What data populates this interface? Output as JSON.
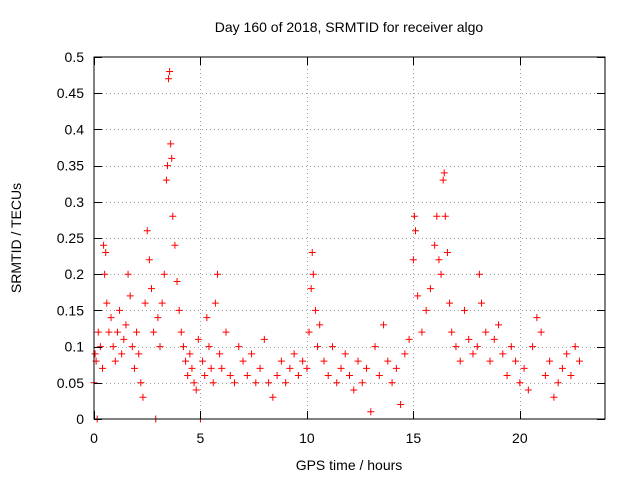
{
  "chart_data": {
    "type": "scatter",
    "title": "Day 160 of 2018, SRMTID for receiver algo",
    "xlabel": "GPS time / hours",
    "ylabel": "SRMTID / TECUs",
    "xlim": [
      0,
      24
    ],
    "ylim": [
      0,
      0.5
    ],
    "x_ticks": [
      0,
      5,
      10,
      15,
      20
    ],
    "x_tick_labels": [
      "0",
      "5",
      "10",
      "15",
      "20"
    ],
    "y_ticks": [
      0,
      0.05,
      0.1,
      0.15,
      0.2,
      0.25,
      0.3,
      0.35,
      0.4,
      0.45,
      0.5
    ],
    "y_tick_labels": [
      "0",
      "0.05",
      "0.1",
      "0.15",
      "0.2",
      "0.25",
      "0.3",
      "0.35",
      "0.4",
      "0.45",
      "0.5"
    ],
    "grid": true,
    "marker": "+",
    "marker_color": "#ff0000",
    "series": [
      {
        "name": "SRMTID",
        "points": [
          [
            0.0,
            0.05
          ],
          [
            0.05,
            0.09
          ],
          [
            0.1,
            0.08
          ],
          [
            0.15,
            0.0
          ],
          [
            0.2,
            0.12
          ],
          [
            0.3,
            0.1
          ],
          [
            0.4,
            0.07
          ],
          [
            0.45,
            0.24
          ],
          [
            0.5,
            0.2
          ],
          [
            0.55,
            0.23
          ],
          [
            0.6,
            0.16
          ],
          [
            0.7,
            0.12
          ],
          [
            0.8,
            0.14
          ],
          [
            0.9,
            0.1
          ],
          [
            1.0,
            0.08
          ],
          [
            1.1,
            0.12
          ],
          [
            1.2,
            0.15
          ],
          [
            1.3,
            0.09
          ],
          [
            1.4,
            0.11
          ],
          [
            1.5,
            0.13
          ],
          [
            1.6,
            0.2
          ],
          [
            1.7,
            0.17
          ],
          [
            1.8,
            0.1
          ],
          [
            1.9,
            0.07
          ],
          [
            2.0,
            0.12
          ],
          [
            2.1,
            0.09
          ],
          [
            2.2,
            0.05
          ],
          [
            2.3,
            0.03
          ],
          [
            2.4,
            0.16
          ],
          [
            2.5,
            0.26
          ],
          [
            2.6,
            0.22
          ],
          [
            2.7,
            0.18
          ],
          [
            2.8,
            0.12
          ],
          [
            2.9,
            0.0
          ],
          [
            3.0,
            0.14
          ],
          [
            3.1,
            0.1
          ],
          [
            3.2,
            0.16
          ],
          [
            3.3,
            0.2
          ],
          [
            3.4,
            0.33
          ],
          [
            3.45,
            0.35
          ],
          [
            3.5,
            0.47
          ],
          [
            3.55,
            0.48
          ],
          [
            3.6,
            0.38
          ],
          [
            3.65,
            0.36
          ],
          [
            3.7,
            0.28
          ],
          [
            3.8,
            0.24
          ],
          [
            3.9,
            0.19
          ],
          [
            4.0,
            0.15
          ],
          [
            4.1,
            0.12
          ],
          [
            4.2,
            0.1
          ],
          [
            4.3,
            0.08
          ],
          [
            4.4,
            0.06
          ],
          [
            4.5,
            0.09
          ],
          [
            4.6,
            0.07
          ],
          [
            4.7,
            0.05
          ],
          [
            4.8,
            0.04
          ],
          [
            4.9,
            0.11
          ],
          [
            5.0,
            0.0
          ],
          [
            5.1,
            0.08
          ],
          [
            5.2,
            0.06
          ],
          [
            5.3,
            0.14
          ],
          [
            5.4,
            0.1
          ],
          [
            5.5,
            0.07
          ],
          [
            5.6,
            0.05
          ],
          [
            5.7,
            0.16
          ],
          [
            5.8,
            0.2
          ],
          [
            5.9,
            0.09
          ],
          [
            6.0,
            0.07
          ],
          [
            6.2,
            0.12
          ],
          [
            6.4,
            0.06
          ],
          [
            6.6,
            0.05
          ],
          [
            6.8,
            0.1
          ],
          [
            7.0,
            0.08
          ],
          [
            7.2,
            0.06
          ],
          [
            7.4,
            0.09
          ],
          [
            7.6,
            0.05
          ],
          [
            7.8,
            0.07
          ],
          [
            8.0,
            0.11
          ],
          [
            8.2,
            0.05
          ],
          [
            8.4,
            0.03
          ],
          [
            8.6,
            0.06
          ],
          [
            8.8,
            0.08
          ],
          [
            9.0,
            0.05
          ],
          [
            9.2,
            0.07
          ],
          [
            9.4,
            0.09
          ],
          [
            9.6,
            0.06
          ],
          [
            9.8,
            0.08
          ],
          [
            10.0,
            0.07
          ],
          [
            10.1,
            0.12
          ],
          [
            10.2,
            0.18
          ],
          [
            10.25,
            0.23
          ],
          [
            10.3,
            0.2
          ],
          [
            10.4,
            0.15
          ],
          [
            10.5,
            0.1
          ],
          [
            10.6,
            0.13
          ],
          [
            10.8,
            0.08
          ],
          [
            11.0,
            0.06
          ],
          [
            11.2,
            0.1
          ],
          [
            11.4,
            0.05
          ],
          [
            11.6,
            0.07
          ],
          [
            11.8,
            0.09
          ],
          [
            12.0,
            0.06
          ],
          [
            12.2,
            0.04
          ],
          [
            12.4,
            0.08
          ],
          [
            12.6,
            0.05
          ],
          [
            12.8,
            0.07
          ],
          [
            13.0,
            0.01
          ],
          [
            13.2,
            0.1
          ],
          [
            13.4,
            0.06
          ],
          [
            13.6,
            0.13
          ],
          [
            13.8,
            0.08
          ],
          [
            14.0,
            0.05
          ],
          [
            14.2,
            0.07
          ],
          [
            14.4,
            0.02
          ],
          [
            14.6,
            0.09
          ],
          [
            14.8,
            0.11
          ],
          [
            15.0,
            0.22
          ],
          [
            15.05,
            0.28
          ],
          [
            15.1,
            0.26
          ],
          [
            15.2,
            0.17
          ],
          [
            15.4,
            0.12
          ],
          [
            15.6,
            0.15
          ],
          [
            15.8,
            0.18
          ],
          [
            16.0,
            0.24
          ],
          [
            16.1,
            0.28
          ],
          [
            16.2,
            0.22
          ],
          [
            16.3,
            0.2
          ],
          [
            16.4,
            0.33
          ],
          [
            16.45,
            0.34
          ],
          [
            16.5,
            0.28
          ],
          [
            16.6,
            0.23
          ],
          [
            16.7,
            0.16
          ],
          [
            16.8,
            0.12
          ],
          [
            17.0,
            0.1
          ],
          [
            17.2,
            0.08
          ],
          [
            17.4,
            0.15
          ],
          [
            17.6,
            0.11
          ],
          [
            17.8,
            0.09
          ],
          [
            18.0,
            0.1
          ],
          [
            18.1,
            0.2
          ],
          [
            18.2,
            0.16
          ],
          [
            18.4,
            0.12
          ],
          [
            18.6,
            0.08
          ],
          [
            18.8,
            0.11
          ],
          [
            19.0,
            0.13
          ],
          [
            19.2,
            0.09
          ],
          [
            19.4,
            0.06
          ],
          [
            19.6,
            0.1
          ],
          [
            19.8,
            0.08
          ],
          [
            20.0,
            0.05
          ],
          [
            20.2,
            0.07
          ],
          [
            20.4,
            0.04
          ],
          [
            20.6,
            0.1
          ],
          [
            20.8,
            0.14
          ],
          [
            21.0,
            0.12
          ],
          [
            21.2,
            0.06
          ],
          [
            21.4,
            0.08
          ],
          [
            21.6,
            0.03
          ],
          [
            21.8,
            0.05
          ],
          [
            22.0,
            0.07
          ],
          [
            22.2,
            0.09
          ],
          [
            22.4,
            0.06
          ],
          [
            22.6,
            0.1
          ],
          [
            22.8,
            0.08
          ]
        ]
      }
    ]
  }
}
